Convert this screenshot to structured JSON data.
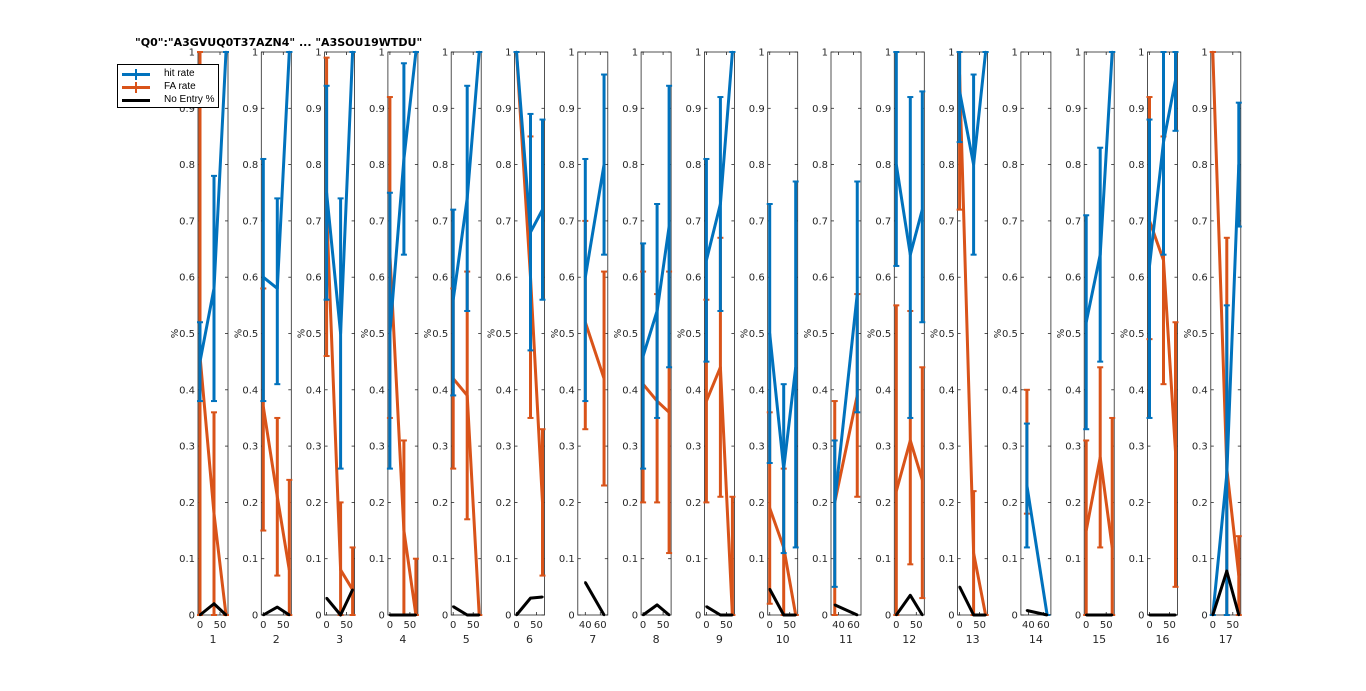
{
  "colors": {
    "hit": "#0072BD",
    "fa": "#D95319",
    "noentry": "#000000",
    "axis": "#262626"
  },
  "legend": {
    "items": [
      {
        "label": "hit rate",
        "color": "#0072BD",
        "errorbar": true
      },
      {
        "label": "FA rate",
        "color": "#D95319",
        "errorbar": true
      },
      {
        "label": "No Entry %",
        "color": "#000000",
        "errorbar": false
      }
    ]
  },
  "chart_data": {
    "type": "line",
    "overlapping_titles": "\"Q0\":\"A3GVUQ0T37AZN4\" ... \"A3SOU19WTDU\"",
    "ylabel": "%",
    "ylim": [
      0,
      1
    ],
    "yticks": [
      0,
      0.1,
      0.2,
      0.3,
      0.4,
      0.5,
      0.6,
      0.7,
      0.8,
      0.9,
      1
    ],
    "ytick_labels": [
      "0",
      "0.1",
      "0.2",
      "0.3",
      "0.4",
      "0.5",
      "0.6",
      "0.7",
      "0.8",
      "0.9",
      "1"
    ],
    "subplots": [
      {
        "xlabel": "1",
        "xlim": [
          -5,
          70
        ],
        "xticks": [
          0,
          50
        ],
        "hit": [
          [
            0,
            0.45,
            0.38,
            0.52
          ],
          [
            35,
            0.58,
            0.38,
            0.78
          ],
          [
            65,
            1.0,
            1.0,
            1.0
          ]
        ],
        "fa": [
          [
            0,
            0.46,
            0.0,
            1.0
          ],
          [
            35,
            0.18,
            0.0,
            0.36
          ],
          [
            65,
            0.0,
            0.0,
            0.0
          ]
        ],
        "noentry": [
          [
            0,
            0.0
          ],
          [
            35,
            0.02
          ],
          [
            65,
            0.0
          ]
        ]
      },
      {
        "xlabel": "2",
        "xlim": [
          -5,
          70
        ],
        "xticks": [
          0,
          50
        ],
        "hit": [
          [
            0,
            0.6,
            0.38,
            0.81
          ],
          [
            35,
            0.58,
            0.41,
            0.74
          ],
          [
            65,
            1.0,
            1.0,
            1.0
          ]
        ],
        "fa": [
          [
            0,
            0.37,
            0.15,
            0.58
          ],
          [
            35,
            0.21,
            0.07,
            0.35
          ],
          [
            65,
            0.08,
            0.0,
            0.24
          ]
        ],
        "noentry": [
          [
            0,
            0.0
          ],
          [
            35,
            0.014
          ],
          [
            65,
            0.0
          ]
        ]
      },
      {
        "xlabel": "3",
        "xlim": [
          -5,
          70
        ],
        "xticks": [
          0,
          50
        ],
        "hit": [
          [
            0,
            0.75,
            0.56,
            0.94
          ],
          [
            35,
            0.5,
            0.26,
            0.74
          ],
          [
            65,
            1.0,
            1.0,
            1.0
          ]
        ],
        "fa": [
          [
            0,
            0.72,
            0.46,
            0.99
          ],
          [
            35,
            0.08,
            0.0,
            0.2
          ],
          [
            65,
            0.045,
            0.0,
            0.12
          ]
        ],
        "noentry": [
          [
            0,
            0.03
          ],
          [
            35,
            0.0
          ],
          [
            65,
            0.045
          ]
        ]
      },
      {
        "xlabel": "4",
        "xlim": [
          -5,
          70
        ],
        "xticks": [
          0,
          50
        ],
        "hit": [
          [
            0,
            0.5,
            0.26,
            0.75
          ],
          [
            35,
            0.81,
            0.64,
            0.98
          ],
          [
            65,
            1.0,
            1.0,
            1.0
          ]
        ],
        "fa": [
          [
            0,
            0.64,
            0.35,
            0.92
          ],
          [
            35,
            0.15,
            0.0,
            0.31
          ],
          [
            65,
            0.0,
            0.0,
            0.1
          ]
        ],
        "noentry": [
          [
            0,
            0.0
          ],
          [
            35,
            0.0
          ],
          [
            65,
            0.0
          ]
        ]
      },
      {
        "xlabel": "5",
        "xlim": [
          -5,
          70
        ],
        "xticks": [
          0,
          50
        ],
        "hit": [
          [
            0,
            0.56,
            0.39,
            0.72
          ],
          [
            35,
            0.74,
            0.54,
            0.94
          ],
          [
            65,
            1.0,
            1.0,
            1.0
          ]
        ],
        "fa": [
          [
            0,
            0.42,
            0.26,
            0.58
          ],
          [
            35,
            0.39,
            0.17,
            0.61
          ],
          [
            65,
            0.0,
            0.0,
            0.0
          ]
        ],
        "noentry": [
          [
            0,
            0.015
          ],
          [
            35,
            0.0
          ],
          [
            65,
            0.0
          ]
        ]
      },
      {
        "xlabel": "6",
        "xlim": [
          -5,
          70
        ],
        "xticks": [
          0,
          50
        ],
        "hit": [
          [
            0,
            1.0,
            1.0,
            1.0
          ],
          [
            35,
            0.68,
            0.47,
            0.89
          ],
          [
            65,
            0.72,
            0.56,
            0.88
          ]
        ],
        "fa": [
          [
            0,
            1.0,
            1.0,
            1.0
          ],
          [
            35,
            0.6,
            0.35,
            0.85
          ],
          [
            65,
            0.2,
            0.07,
            0.33
          ]
        ],
        "noentry": [
          [
            0,
            0.0
          ],
          [
            35,
            0.03
          ],
          [
            65,
            0.032
          ]
        ]
      },
      {
        "xlabel": "7",
        "xlim": [
          30,
          70
        ],
        "xticks": [
          40,
          60
        ],
        "hit": [
          [
            40,
            0.6,
            0.38,
            0.81
          ],
          [
            65,
            0.8,
            0.64,
            0.96
          ]
        ],
        "fa": [
          [
            40,
            0.52,
            0.33,
            0.7
          ],
          [
            65,
            0.42,
            0.23,
            0.61
          ]
        ],
        "noentry": [
          [
            40,
            0.058
          ],
          [
            65,
            0.0
          ]
        ]
      },
      {
        "xlabel": "8",
        "xlim": [
          -5,
          70
        ],
        "xticks": [
          0,
          50
        ],
        "hit": [
          [
            0,
            0.46,
            0.26,
            0.66
          ],
          [
            35,
            0.54,
            0.35,
            0.73
          ],
          [
            65,
            0.69,
            0.44,
            0.94
          ]
        ],
        "fa": [
          [
            0,
            0.41,
            0.2,
            0.61
          ],
          [
            35,
            0.38,
            0.2,
            0.57
          ],
          [
            65,
            0.36,
            0.11,
            0.61
          ]
        ],
        "noentry": [
          [
            0,
            0.0
          ],
          [
            35,
            0.018
          ],
          [
            65,
            0.0
          ]
        ]
      },
      {
        "xlabel": "9",
        "xlim": [
          -5,
          70
        ],
        "xticks": [
          0,
          50
        ],
        "hit": [
          [
            0,
            0.63,
            0.45,
            0.81
          ],
          [
            35,
            0.73,
            0.54,
            0.92
          ],
          [
            65,
            1.0,
            1.0,
            1.0
          ]
        ],
        "fa": [
          [
            0,
            0.38,
            0.2,
            0.56
          ],
          [
            35,
            0.44,
            0.21,
            0.67
          ],
          [
            65,
            0.0,
            0.0,
            0.21
          ]
        ],
        "noentry": [
          [
            0,
            0.015
          ],
          [
            35,
            0.0
          ],
          [
            65,
            0.0
          ]
        ]
      },
      {
        "xlabel": "10",
        "xlim": [
          -5,
          70
        ],
        "xticks": [
          0,
          50
        ],
        "hit": [
          [
            0,
            0.5,
            0.27,
            0.73
          ],
          [
            35,
            0.26,
            0.11,
            0.41
          ],
          [
            65,
            0.44,
            0.12,
            0.77
          ]
        ],
        "fa": [
          [
            0,
            0.19,
            0.02,
            0.36
          ],
          [
            35,
            0.12,
            0.0,
            0.26
          ],
          [
            65,
            0.0,
            0.0,
            0.0
          ]
        ],
        "noentry": [
          [
            0,
            0.046
          ],
          [
            35,
            0.0
          ],
          [
            65,
            0.0
          ]
        ]
      },
      {
        "xlabel": "11",
        "xlim": [
          30,
          70
        ],
        "xticks": [
          40,
          60
        ],
        "hit": [
          [
            35,
            0.2,
            0.05,
            0.31
          ],
          [
            65,
            0.57,
            0.36,
            0.77
          ]
        ],
        "fa": [
          [
            35,
            0.2,
            0.0,
            0.38
          ],
          [
            65,
            0.39,
            0.21,
            0.57
          ]
        ],
        "noentry": [
          [
            35,
            0.018
          ],
          [
            65,
            0.0
          ]
        ]
      },
      {
        "xlabel": "12",
        "xlim": [
          -5,
          70
        ],
        "xticks": [
          0,
          50
        ],
        "hit": [
          [
            0,
            0.8,
            0.62,
            1.0
          ],
          [
            35,
            0.64,
            0.35,
            0.92
          ],
          [
            65,
            0.72,
            0.52,
            0.93
          ]
        ],
        "fa": [
          [
            0,
            0.22,
            0.0,
            0.55
          ],
          [
            35,
            0.31,
            0.09,
            0.54
          ],
          [
            65,
            0.24,
            0.03,
            0.44
          ]
        ],
        "noentry": [
          [
            0,
            0.0
          ],
          [
            35,
            0.035
          ],
          [
            65,
            0.0
          ]
        ]
      },
      {
        "xlabel": "13",
        "xlim": [
          -5,
          70
        ],
        "xticks": [
          0,
          50
        ],
        "hit": [
          [
            0,
            0.93,
            0.84,
            1.0
          ],
          [
            35,
            0.8,
            0.64,
            0.96
          ],
          [
            65,
            1.0,
            1.0,
            1.0
          ]
        ],
        "fa": [
          [
            0,
            0.96,
            0.72,
            1.0
          ],
          [
            35,
            0.11,
            0.0,
            0.22
          ],
          [
            65,
            0.0,
            0.0,
            0.0
          ]
        ],
        "noentry": [
          [
            0,
            0.05
          ],
          [
            35,
            0.0
          ],
          [
            65,
            0.0
          ]
        ]
      },
      {
        "xlabel": "14",
        "xlim": [
          30,
          70
        ],
        "xticks": [
          40,
          60
        ],
        "hit": [
          [
            38,
            0.23,
            0.12,
            0.34
          ],
          [
            65,
            0.0,
            0.0,
            0.0
          ]
        ],
        "fa": [
          [
            38,
            0.29,
            0.18,
            0.4
          ]
        ],
        "noentry": [
          [
            38,
            0.008
          ],
          [
            65,
            0.0
          ]
        ]
      },
      {
        "xlabel": "15",
        "xlim": [
          -5,
          70
        ],
        "xticks": [
          0,
          50
        ],
        "hit": [
          [
            0,
            0.52,
            0.33,
            0.71
          ],
          [
            35,
            0.64,
            0.45,
            0.83
          ],
          [
            65,
            1.0,
            1.0,
            1.0
          ]
        ],
        "fa": [
          [
            0,
            0.15,
            0.0,
            0.31
          ],
          [
            35,
            0.28,
            0.12,
            0.44
          ],
          [
            65,
            0.12,
            0.0,
            0.35
          ]
        ],
        "noentry": [
          [
            0,
            0.0
          ],
          [
            35,
            0.0
          ],
          [
            65,
            0.0
          ]
        ]
      },
      {
        "xlabel": "16",
        "xlim": [
          -5,
          70
        ],
        "xticks": [
          0,
          50
        ],
        "hit": [
          [
            0,
            0.62,
            0.35,
            0.88
          ],
          [
            35,
            0.84,
            0.64,
            1.0
          ],
          [
            65,
            0.95,
            0.86,
            1.0
          ]
        ],
        "fa": [
          [
            0,
            0.7,
            0.49,
            0.92
          ],
          [
            35,
            0.63,
            0.41,
            0.85
          ],
          [
            65,
            0.29,
            0.05,
            0.52
          ]
        ],
        "noentry": [
          [
            0,
            0.0
          ],
          [
            35,
            0.0
          ],
          [
            65,
            0.0
          ]
        ]
      },
      {
        "xlabel": "17",
        "xlim": [
          -5,
          70
        ],
        "xticks": [
          0,
          50
        ],
        "hit": [
          [
            0,
            0.0,
            0.0,
            0.0
          ],
          [
            35,
            0.25,
            0.0,
            0.55
          ],
          [
            65,
            0.8,
            0.69,
            0.91
          ]
        ],
        "fa": [
          [
            0,
            1.0,
            1.0,
            1.0
          ],
          [
            35,
            0.26,
            0.0,
            0.67
          ],
          [
            65,
            0.07,
            0.0,
            0.14
          ]
        ],
        "noentry": [
          [
            0,
            0.0
          ],
          [
            35,
            0.078
          ],
          [
            65,
            0.0
          ]
        ]
      }
    ]
  }
}
